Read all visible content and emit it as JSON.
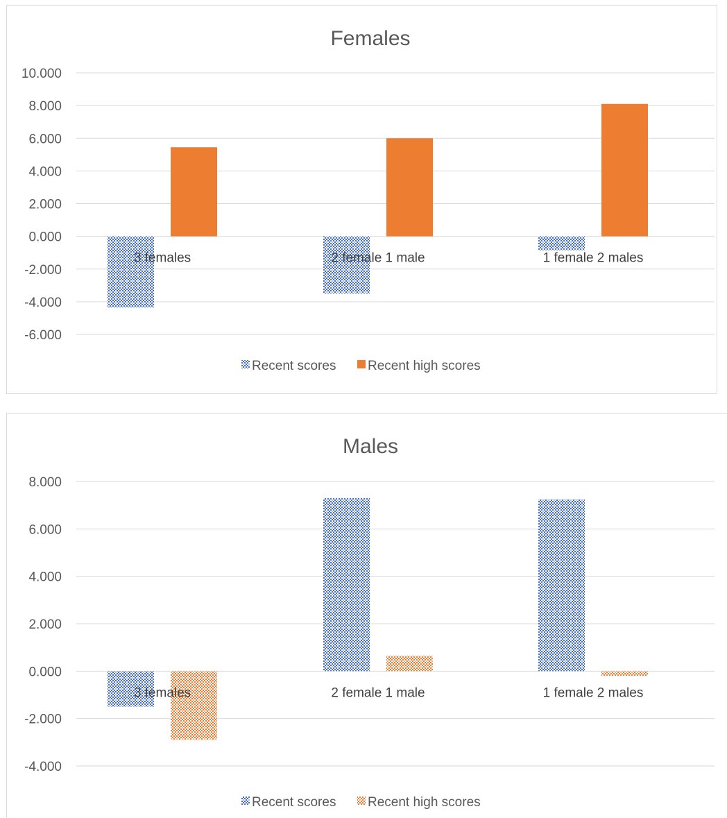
{
  "chart_data": [
    {
      "type": "bar",
      "title": "Females",
      "categories": [
        "3 females",
        "2 female 1 male",
        "1 female 2 males"
      ],
      "series": [
        {
          "name": "Recent scores",
          "values": [
            -4.35,
            -3.5,
            -0.85
          ],
          "color": "#4472c4",
          "fill": "pattern"
        },
        {
          "name": "Recent high scores",
          "values": [
            5.45,
            6.0,
            8.1
          ],
          "color": "#ed7d31",
          "fill": "solid"
        }
      ],
      "yticks": [
        "10.000",
        "8.000",
        "6.000",
        "4.000",
        "2.000",
        "0.000",
        "-2.000",
        "-4.000",
        "-6.000"
      ],
      "ylim": [
        -6,
        10
      ],
      "grid": true,
      "legend": "bottom"
    },
    {
      "type": "bar",
      "title": "Males",
      "categories": [
        "3 females",
        "2 female 1 male",
        "1 female 2 males"
      ],
      "series": [
        {
          "name": "Recent scores",
          "values": [
            -1.5,
            7.3,
            7.25
          ],
          "color": "#4472c4",
          "fill": "pattern"
        },
        {
          "name": "Recent high scores",
          "values": [
            -2.9,
            0.65,
            -0.2
          ],
          "color": "#ed7d31",
          "fill": "pattern"
        }
      ],
      "yticks": [
        "8.000",
        "6.000",
        "4.000",
        "2.000",
        "0.000",
        "-2.000",
        "-4.000"
      ],
      "ylim": [
        -4,
        8
      ],
      "grid": true,
      "legend": "bottom"
    }
  ]
}
